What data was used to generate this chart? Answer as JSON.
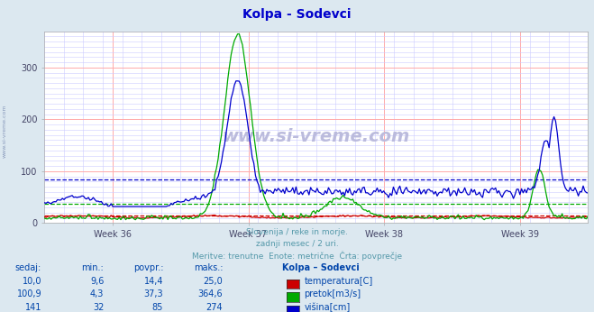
{
  "title": "Kolpa - Sodevci",
  "title_color": "#0000cc",
  "bg_color": "#dce8f0",
  "plot_bg_color": "#ffffff",
  "grid_color_major": "#ffaaaa",
  "grid_color_minor": "#ccccff",
  "ylim": [
    0,
    370
  ],
  "yticks": [
    0,
    100,
    200,
    300
  ],
  "weeks": [
    "Week 36",
    "Week 37",
    "Week 38",
    "Week 39"
  ],
  "subtitle_lines": [
    "Slovenija / reke in morje.",
    "zadnji mesec / 2 uri.",
    "Meritve: trenutne  Enote: metrične  Črta: povprečje"
  ],
  "subtitle_color": "#5599aa",
  "table_header": [
    "sedaj:",
    "min.:",
    "povpr.:",
    "maks.:",
    "Kolpa – Sodevci"
  ],
  "table_color": "#0044aa",
  "avg_temp": 14.4,
  "avg_pretok": 37.3,
  "avg_visina": 85,
  "temp_color": "#cc0000",
  "pretok_color": "#00aa00",
  "visina_color": "#0000cc",
  "watermark": "www.si-vreme.com",
  "watermark_color": "#bbbbdd",
  "left_text": "www.si-vreme.com",
  "left_text_color": "#8899bb",
  "row_data": [
    [
      "10,0",
      "9,6",
      "14,4",
      "25,0",
      "temperatura[C]"
    ],
    [
      "100,9",
      "4,3",
      "37,3",
      "364,6",
      "pretok[m3/s]"
    ],
    [
      "141",
      "32",
      "85",
      "274",
      "višina[cm]"
    ]
  ],
  "row_colors": [
    "#cc0000",
    "#00aa00",
    "#0000cc"
  ]
}
